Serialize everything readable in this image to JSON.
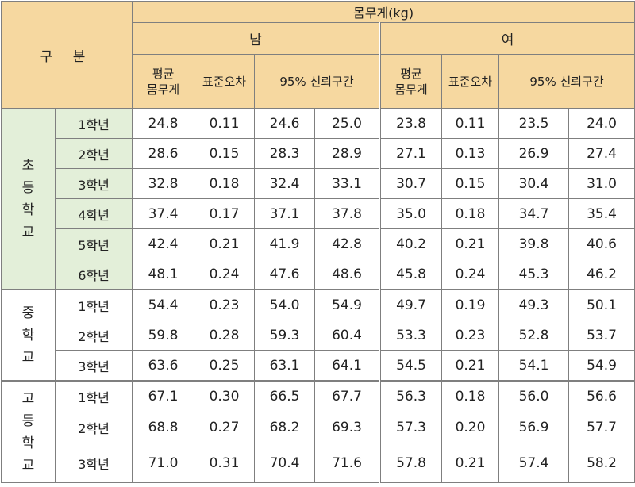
{
  "header": {
    "corner": "구 분",
    "title": "몸무게(kg)",
    "male": "남",
    "female": "여",
    "mean_line1": "평균",
    "mean_line2": "몸무게",
    "se": "표준오차",
    "ci": "95% 신뢰구간"
  },
  "groups": [
    {
      "label_chars": [
        "초",
        "등",
        "학",
        "교"
      ],
      "rows": [
        {
          "grade": "1학년",
          "m": [
            "24.8",
            "0.11",
            "24.6",
            "25.0"
          ],
          "f": [
            "23.8",
            "0.11",
            "23.5",
            "24.0"
          ]
        },
        {
          "grade": "2학년",
          "m": [
            "28.6",
            "0.15",
            "28.3",
            "28.9"
          ],
          "f": [
            "27.1",
            "0.13",
            "26.9",
            "27.4"
          ]
        },
        {
          "grade": "3학년",
          "m": [
            "32.8",
            "0.18",
            "32.4",
            "33.1"
          ],
          "f": [
            "30.7",
            "0.15",
            "30.4",
            "31.0"
          ]
        },
        {
          "grade": "4학년",
          "m": [
            "37.4",
            "0.17",
            "37.1",
            "37.8"
          ],
          "f": [
            "35.0",
            "0.18",
            "34.7",
            "35.4"
          ]
        },
        {
          "grade": "5학년",
          "m": [
            "42.4",
            "0.21",
            "41.9",
            "42.8"
          ],
          "f": [
            "40.2",
            "0.21",
            "39.8",
            "40.6"
          ]
        },
        {
          "grade": "6학년",
          "m": [
            "48.1",
            "0.24",
            "47.6",
            "48.6"
          ],
          "f": [
            "45.8",
            "0.24",
            "45.3",
            "46.2"
          ]
        }
      ]
    },
    {
      "label_chars": [
        "중",
        "학",
        "교"
      ],
      "rows": [
        {
          "grade": "1학년",
          "m": [
            "54.4",
            "0.23",
            "54.0",
            "54.9"
          ],
          "f": [
            "49.7",
            "0.19",
            "49.3",
            "50.1"
          ]
        },
        {
          "grade": "2학년",
          "m": [
            "59.8",
            "0.28",
            "59.3",
            "60.4"
          ],
          "f": [
            "53.3",
            "0.23",
            "52.8",
            "53.7"
          ]
        },
        {
          "grade": "3학년",
          "m": [
            "63.6",
            "0.25",
            "63.1",
            "64.1"
          ],
          "f": [
            "54.5",
            "0.21",
            "54.1",
            "54.9"
          ]
        }
      ]
    },
    {
      "label_chars": [
        "고",
        "등",
        "학",
        "교"
      ],
      "rows": [
        {
          "grade": "1학년",
          "m": [
            "67.1",
            "0.30",
            "66.5",
            "67.7"
          ],
          "f": [
            "56.3",
            "0.18",
            "56.0",
            "56.6"
          ]
        },
        {
          "grade": "2학년",
          "m": [
            "68.8",
            "0.27",
            "68.2",
            "69.3"
          ],
          "f": [
            "57.3",
            "0.20",
            "56.9",
            "57.7"
          ]
        },
        {
          "grade": "3학년",
          "m": [
            "71.0",
            "0.31",
            "70.4",
            "71.6"
          ],
          "f": [
            "57.8",
            "0.21",
            "57.4",
            "58.2"
          ]
        }
      ]
    }
  ],
  "colors": {
    "header_bg": "#f6d8a0",
    "elementary_bg": "#e3efd9",
    "border": "#7f7f7f"
  }
}
